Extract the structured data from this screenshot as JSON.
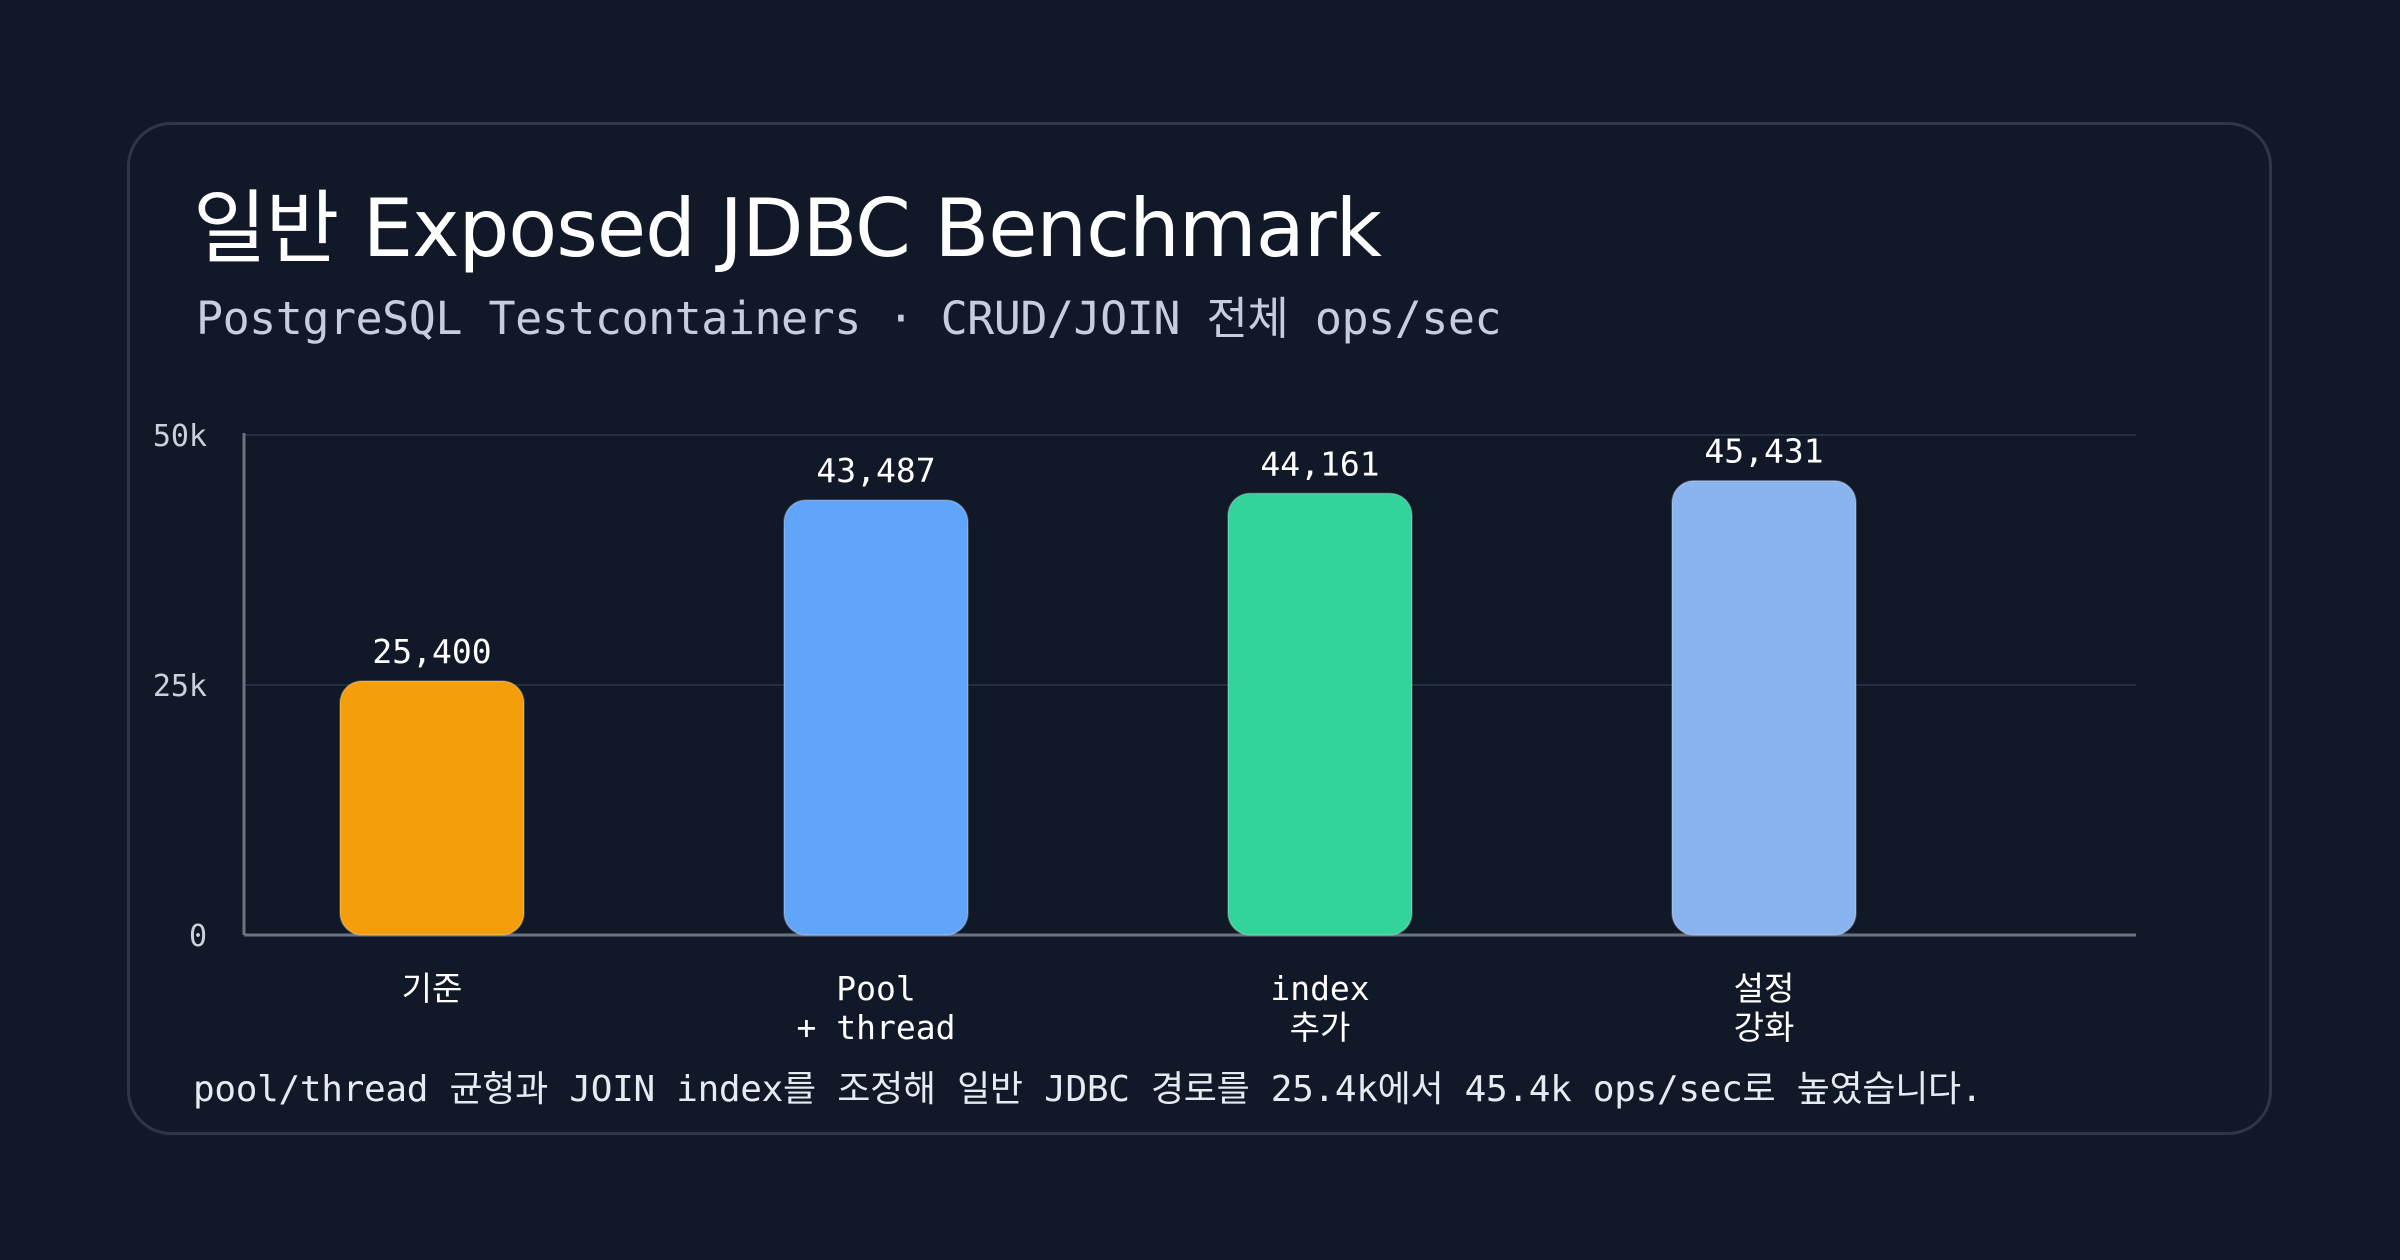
{
  "header": {
    "title": "일반 Exposed JDBC Benchmark",
    "subtitle": "PostgreSQL Testcontainers · CRUD/JOIN 전체 ops/sec"
  },
  "footer": {
    "caption": "pool/thread 균형과 JOIN index를 조정해 일반 JDBC 경로를 25.4k에서 45.4k ops/sec로 높였습니다."
  },
  "chart_data": {
    "type": "bar",
    "title": "일반 Exposed JDBC Benchmark",
    "subtitle": "PostgreSQL Testcontainers · CRUD/JOIN 전체 ops/sec",
    "categories": [
      [
        "기준"
      ],
      [
        "Pool",
        "+ thread"
      ],
      [
        "index",
        "추가"
      ],
      [
        "설정",
        "강화"
      ]
    ],
    "values": [
      25400,
      43487,
      44161,
      45431
    ],
    "value_labels": [
      "25,400",
      "43,487",
      "44,161",
      "45,431"
    ],
    "colors": [
      "#f59e0b",
      "#60a5fa",
      "#34d399",
      "#8ab4ef"
    ],
    "ylim": [
      0,
      50000
    ],
    "yticks": [
      0,
      25000,
      50000
    ],
    "ytick_labels": [
      "0",
      "25k",
      "50k"
    ],
    "grid": true,
    "xlabel": "",
    "ylabel": ""
  }
}
